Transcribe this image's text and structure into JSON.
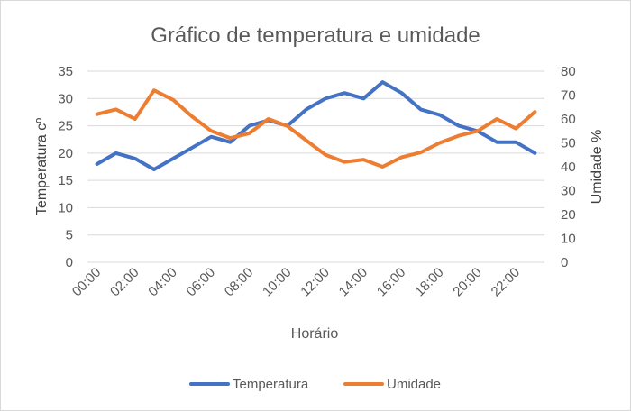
{
  "chart_data": {
    "type": "line",
    "title": "Gráfico de temperatura e umidade",
    "xlabel": "Horário",
    "ylabel": "Temperatura cº",
    "y2label": "Umidade %",
    "x": [
      "00:00",
      "01:00",
      "02:00",
      "03:00",
      "04:00",
      "05:00",
      "06:00",
      "07:00",
      "08:00",
      "09:00",
      "10:00",
      "11:00",
      "12:00",
      "13:00",
      "14:00",
      "15:00",
      "16:00",
      "17:00",
      "18:00",
      "19:00",
      "20:00",
      "21:00",
      "22:00",
      "23:00"
    ],
    "x_tick_labels": [
      "00:00",
      "02:00",
      "04:00",
      "06:00",
      "08:00",
      "10:00",
      "12:00",
      "14:00",
      "16:00",
      "18:00",
      "20:00",
      "22:00"
    ],
    "ylim": [
      0,
      35
    ],
    "y_ticks": [
      0,
      5,
      10,
      15,
      20,
      25,
      30,
      35
    ],
    "y2lim": [
      0,
      80
    ],
    "y2_ticks": [
      0,
      10,
      20,
      30,
      40,
      50,
      60,
      70,
      80
    ],
    "grid": true,
    "legend_position": "bottom",
    "series": [
      {
        "name": "Temperatura",
        "axis": "left",
        "color": "#4472c4",
        "values": [
          18,
          20,
          19,
          17,
          19,
          21,
          23,
          22,
          25,
          26,
          25,
          28,
          30,
          31,
          30,
          33,
          31,
          28,
          27,
          25,
          24,
          22,
          22,
          20
        ]
      },
      {
        "name": "Umidade",
        "axis": "right",
        "color": "#ed7d31",
        "values": [
          62,
          64,
          60,
          72,
          68,
          61,
          55,
          52,
          54,
          60,
          57,
          51,
          45,
          42,
          43,
          40,
          44,
          46,
          50,
          53,
          55,
          60,
          56,
          63
        ]
      }
    ]
  }
}
